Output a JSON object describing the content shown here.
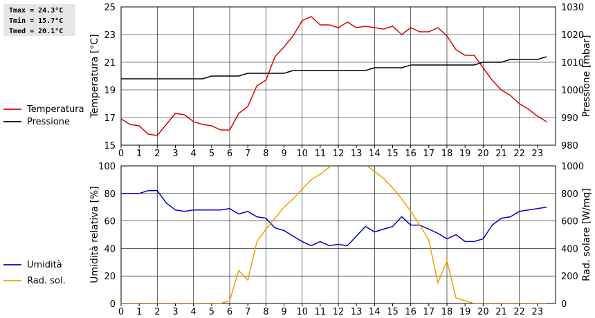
{
  "stats": {
    "tmax": "Tmax = 24.3°C",
    "tmin": "Tmin = 15.7°C",
    "tmed": "Tmed = 20.1°C"
  },
  "chart_data": [
    {
      "type": "line",
      "x_ticks": [
        "0",
        "1",
        "2",
        "3",
        "4",
        "5",
        "6",
        "7",
        "8",
        "9",
        "10",
        "11",
        "12",
        "13",
        "14",
        "15",
        "16",
        "17",
        "18",
        "19",
        "20",
        "21",
        "22",
        "23"
      ],
      "xlim": [
        0,
        24
      ],
      "ylabel_left": "Temperatura [°C]",
      "ylabel_right": "Pressione [mbar]",
      "ylim_left": [
        15,
        25
      ],
      "ylim_right": [
        980,
        1030
      ],
      "yticks_left": [
        "15",
        "17",
        "19",
        "21",
        "23",
        "25"
      ],
      "yticks_right": [
        "980",
        "990",
        "1000",
        "1010",
        "1020",
        "1030"
      ],
      "grid": true,
      "series": [
        {
          "name": "Temperatura",
          "axis": "left",
          "color": "#dd0000",
          "x": [
            0,
            0.5,
            1,
            1.5,
            2,
            2.5,
            3,
            3.5,
            4,
            4.5,
            5,
            5.5,
            6,
            6.5,
            7,
            7.5,
            8,
            8.5,
            9,
            9.5,
            10,
            10.5,
            11,
            11.5,
            12,
            12.5,
            13,
            13.5,
            14,
            14.5,
            15,
            15.5,
            16,
            16.5,
            17,
            17.5,
            18,
            18.5,
            19,
            19.5,
            20,
            20.5,
            21,
            21.5,
            22,
            22.5,
            23,
            23.5
          ],
          "values": [
            16.9,
            16.5,
            16.4,
            15.8,
            15.7,
            16.5,
            17.3,
            17.2,
            16.7,
            16.5,
            16.4,
            16.1,
            16.1,
            17.3,
            17.8,
            19.3,
            19.7,
            21.4,
            22.1,
            22.9,
            24.0,
            24.3,
            23.7,
            23.7,
            23.5,
            23.9,
            23.5,
            23.6,
            23.5,
            23.4,
            23.6,
            23.0,
            23.5,
            23.2,
            23.2,
            23.5,
            22.9,
            21.9,
            21.5,
            21.5,
            20.6,
            19.7,
            19.0,
            18.6,
            18.0,
            17.6,
            17.1,
            16.7
          ]
        },
        {
          "name": "Pressione",
          "axis": "right",
          "color": "#000000",
          "x": [
            0,
            0.5,
            1,
            1.5,
            2,
            2.5,
            3,
            3.5,
            4,
            4.5,
            5,
            5.5,
            6,
            6.5,
            7,
            7.5,
            8,
            8.5,
            9,
            9.5,
            10,
            10.5,
            11,
            11.5,
            12,
            12.5,
            13,
            13.5,
            14,
            14.5,
            15,
            15.5,
            16,
            16.5,
            17,
            17.5,
            18,
            18.5,
            19,
            19.5,
            20,
            20.5,
            21,
            21.5,
            22,
            22.5,
            23,
            23.5
          ],
          "values": [
            1004,
            1004,
            1004,
            1004,
            1004,
            1004,
            1004,
            1004,
            1004,
            1004,
            1005,
            1005,
            1005,
            1005,
            1006,
            1006,
            1006,
            1006,
            1006,
            1007,
            1007,
            1007,
            1007,
            1007,
            1007,
            1007,
            1007,
            1007,
            1008,
            1008,
            1008,
            1008,
            1009,
            1009,
            1009,
            1009,
            1009,
            1009,
            1009,
            1009,
            1010,
            1010,
            1010,
            1011,
            1011,
            1011,
            1011,
            1012
          ]
        }
      ]
    },
    {
      "type": "line",
      "x_ticks": [
        "0",
        "1",
        "2",
        "3",
        "4",
        "5",
        "6",
        "7",
        "8",
        "9",
        "10",
        "11",
        "12",
        "13",
        "14",
        "15",
        "16",
        "17",
        "18",
        "19",
        "20",
        "21",
        "22",
        "23"
      ],
      "xlim": [
        0,
        24
      ],
      "ylabel_left": "Umidità relativa [%]",
      "ylabel_right": "Rad. solare [W/mq]",
      "ylim_left": [
        0,
        100
      ],
      "ylim_right": [
        0,
        1000
      ],
      "yticks_left": [
        "0",
        "20",
        "40",
        "60",
        "80",
        "100"
      ],
      "yticks_right": [
        "0",
        "200",
        "400",
        "600",
        "800",
        "1000"
      ],
      "grid": true,
      "series": [
        {
          "name": "Umidità",
          "axis": "left",
          "color": "#0000cc",
          "x": [
            0,
            0.5,
            1,
            1.5,
            2,
            2.5,
            3,
            3.5,
            4,
            4.5,
            5,
            5.5,
            6,
            6.5,
            7,
            7.5,
            8,
            8.5,
            9,
            9.5,
            10,
            10.5,
            11,
            11.5,
            12,
            12.5,
            13,
            13.5,
            14,
            14.5,
            15,
            15.5,
            16,
            16.5,
            17,
            17.5,
            18,
            18.5,
            19,
            19.5,
            20,
            20.5,
            21,
            21.5,
            22,
            22.5,
            23,
            23.5
          ],
          "values": [
            80,
            80,
            80,
            82,
            82,
            73,
            68,
            67,
            68,
            68,
            68,
            68,
            69,
            65,
            67,
            63,
            62,
            55,
            53,
            49,
            45,
            42,
            45,
            42,
            43,
            42,
            49,
            56,
            52,
            54,
            56,
            63,
            57,
            57,
            54,
            51,
            47,
            50,
            45,
            45,
            47,
            57,
            62,
            63,
            67,
            68,
            69,
            70
          ]
        },
        {
          "name": "Rad. sol.",
          "axis": "right",
          "color": "#f0a000",
          "x": [
            0,
            1,
            2,
            3,
            4,
            5,
            5.5,
            6,
            6.5,
            7,
            7.5,
            8,
            8.5,
            9,
            9.5,
            10,
            10.5,
            11,
            11.5,
            12,
            12.5,
            13,
            13.5,
            14,
            14.5,
            15,
            15.5,
            16,
            16.5,
            17,
            17.5,
            18,
            18.5,
            19,
            19.5,
            20,
            21,
            22,
            23,
            23.5
          ],
          "values": [
            0,
            0,
            0,
            0,
            0,
            0,
            0,
            20,
            240,
            170,
            450,
            540,
            620,
            700,
            760,
            830,
            900,
            940,
            990,
            1040,
            1060,
            1050,
            1010,
            960,
            910,
            840,
            760,
            670,
            570,
            460,
            150,
            310,
            40,
            20,
            0,
            0,
            0,
            0,
            0,
            0
          ]
        }
      ]
    }
  ]
}
